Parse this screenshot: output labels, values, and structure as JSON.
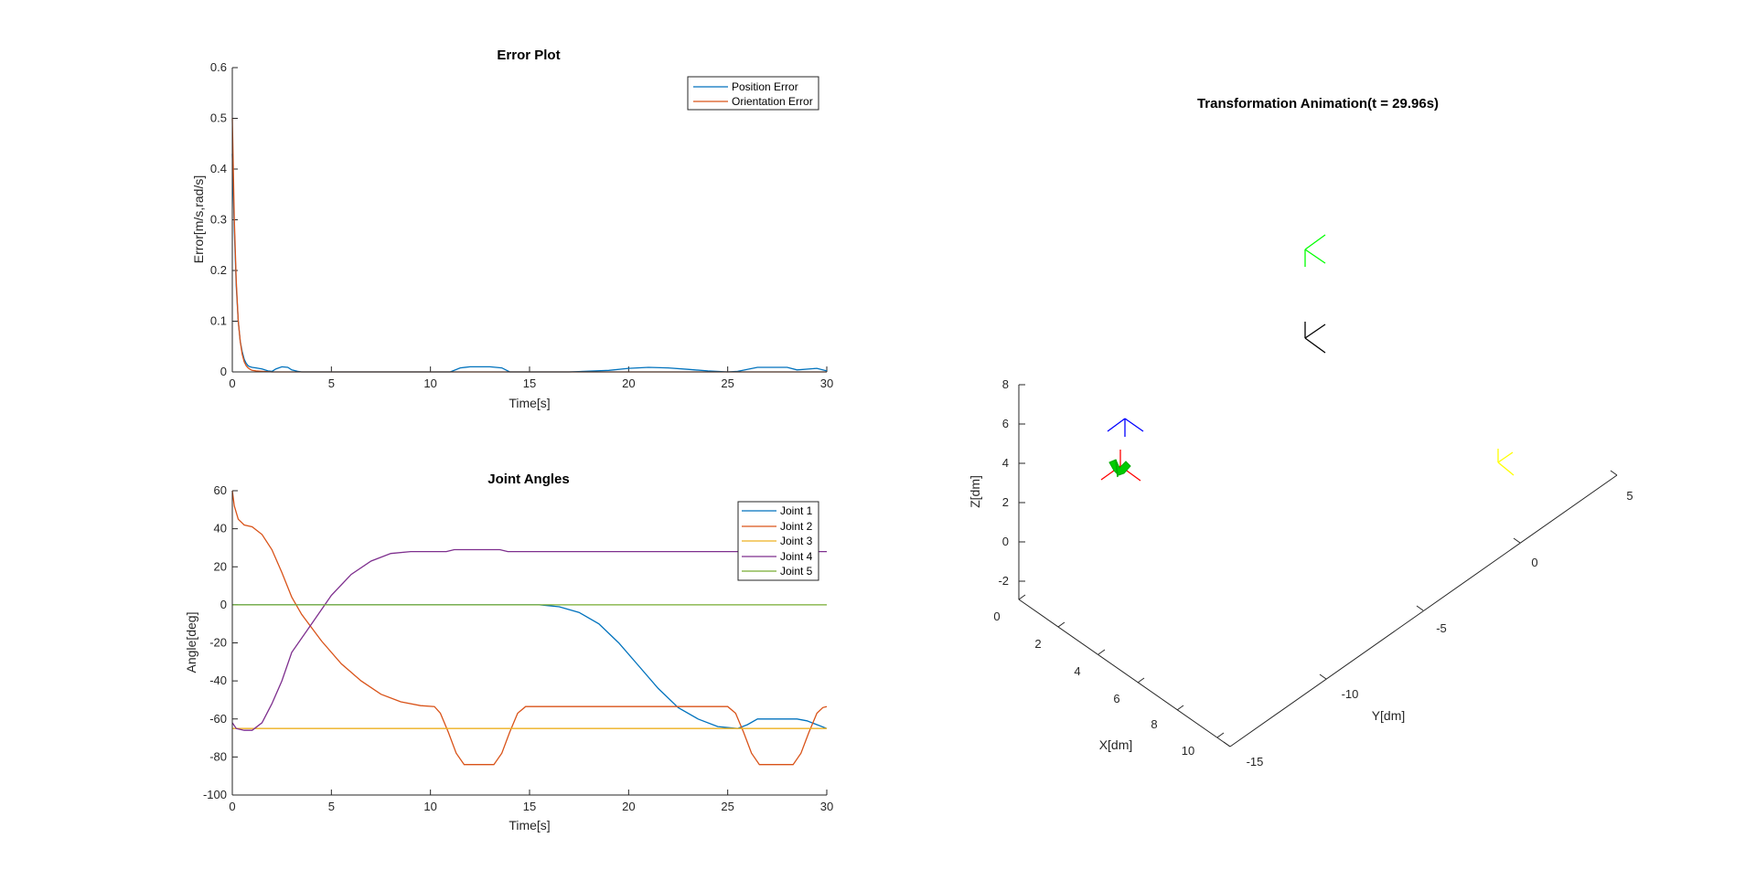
{
  "chart_data": [
    {
      "type": "line",
      "title": "Error Plot",
      "xlabel": "Time[s]",
      "ylabel": "Error[m/s,rad/s]",
      "xlim": [
        0,
        30
      ],
      "ylim": [
        0,
        0.6
      ],
      "xticks": [
        "0",
        "5",
        "10",
        "15",
        "20",
        "25",
        "30"
      ],
      "yticks": [
        "0",
        "0.1",
        "0.2",
        "0.3",
        "0.4",
        "0.5",
        "0.6"
      ],
      "legend": "top-right",
      "series": [
        {
          "name": "Position Error",
          "color": "#0072BD",
          "x": [
            0,
            0.1,
            0.2,
            0.3,
            0.4,
            0.5,
            0.6,
            0.7,
            0.8,
            0.9,
            1.0,
            1.2,
            1.5,
            1.8,
            2.0,
            2.2,
            2.5,
            2.8,
            3.0,
            3.3,
            3.5,
            4.0,
            6.0,
            8.0,
            11.0,
            11.5,
            12.0,
            13.0,
            13.6,
            14.0,
            17.0,
            19.0,
            20.0,
            21.0,
            22.0,
            23.0,
            24.0,
            25.0,
            25.5,
            26.5,
            28.0,
            28.5,
            29.5,
            30
          ],
          "y": [
            0.43,
            0.28,
            0.17,
            0.1,
            0.06,
            0.04,
            0.025,
            0.017,
            0.012,
            0.01,
            0.009,
            0.008,
            0.006,
            0.002,
            0.001,
            0.006,
            0.01,
            0.009,
            0.004,
            0.001,
            0.0,
            0.0,
            0.0,
            0.0,
            0.0,
            0.008,
            0.01,
            0.01,
            0.008,
            0.0,
            0.0,
            0.003,
            0.007,
            0.009,
            0.008,
            0.005,
            0.002,
            0.0,
            0.001,
            0.009,
            0.009,
            0.004,
            0.007,
            0.002
          ]
        },
        {
          "name": "Orientation Error",
          "color": "#D95319",
          "x": [
            0,
            0.1,
            0.2,
            0.3,
            0.4,
            0.5,
            0.6,
            0.7,
            0.8,
            0.9,
            1.0,
            1.2,
            1.5,
            2.0,
            2.5,
            3.0,
            5.0,
            10.0,
            15.0,
            20.0,
            25.0,
            30
          ],
          "y": [
            0.5,
            0.3,
            0.18,
            0.1,
            0.06,
            0.035,
            0.02,
            0.012,
            0.008,
            0.005,
            0.003,
            0.002,
            0.001,
            0.0,
            0.0,
            0.0,
            0.0,
            0.0,
            0.0,
            0.0,
            0.0,
            0.0
          ]
        }
      ]
    },
    {
      "type": "line",
      "title": "Joint Angles",
      "xlabel": "Time[s]",
      "ylabel": "Angle[deg]",
      "xlim": [
        0,
        30
      ],
      "ylim": [
        -100,
        60
      ],
      "xticks": [
        "0",
        "5",
        "10",
        "15",
        "20",
        "25",
        "30"
      ],
      "yticks": [
        "-100",
        "-80",
        "-60",
        "-40",
        "-20",
        "0",
        "20",
        "40",
        "60"
      ],
      "legend": "top-right",
      "series": [
        {
          "name": "Joint 1",
          "color": "#0072BD",
          "x": [
            0,
            15.5,
            16.5,
            17.5,
            18.5,
            19.5,
            20.5,
            21.5,
            22.5,
            23.5,
            24.5,
            25.5,
            26.0,
            26.5,
            28.5,
            29.0,
            29.5,
            30
          ],
          "y": [
            0,
            0,
            -1,
            -4,
            -10,
            -20,
            -32,
            -44,
            -54,
            -60,
            -64,
            -65,
            -63,
            -60,
            -60,
            -61,
            -63,
            -65
          ]
        },
        {
          "name": "Joint 2",
          "color": "#D95319",
          "x": [
            0,
            0.1,
            0.3,
            0.6,
            1.0,
            1.5,
            2.0,
            2.5,
            3.0,
            3.5,
            4.5,
            5.5,
            6.5,
            7.5,
            8.5,
            9.5,
            10.2,
            10.5,
            10.9,
            11.3,
            11.7,
            13.2,
            13.6,
            14.0,
            14.4,
            14.8,
            25.0,
            25.4,
            25.8,
            26.2,
            26.6,
            28.3,
            28.7,
            29.1,
            29.5,
            29.8,
            30
          ],
          "y": [
            60,
            52,
            45,
            42,
            41,
            37,
            29,
            17,
            4,
            -5,
            -19,
            -31,
            -40,
            -47,
            -51,
            -53,
            -53.5,
            -57,
            -67,
            -78,
            -84,
            -84,
            -78,
            -67,
            -57,
            -53.5,
            -53.5,
            -57,
            -67,
            -78,
            -84,
            -84,
            -78,
            -67,
            -57,
            -54,
            -53.5
          ]
        },
        {
          "name": "Joint 3",
          "color": "#EDB120",
          "x": [
            0,
            30
          ],
          "y": [
            -65,
            -65
          ]
        },
        {
          "name": "Joint 4",
          "color": "#7E2F8E",
          "x": [
            0,
            0.2,
            0.6,
            1.0,
            1.5,
            2.0,
            2.5,
            3.0,
            4.0,
            5.0,
            6.0,
            7.0,
            8.0,
            9.0,
            10.0,
            10.8,
            11.2,
            13.5,
            13.9,
            14.3,
            30
          ],
          "y": [
            -62,
            -65,
            -66,
            -66,
            -62,
            -52,
            -40,
            -25,
            -10,
            5,
            16,
            23,
            27,
            28,
            28,
            28,
            29,
            29,
            28,
            28,
            28
          ]
        },
        {
          "name": "Joint 5",
          "color": "#77AC30",
          "x": [
            0,
            30
          ],
          "y": [
            0,
            0
          ]
        }
      ]
    },
    {
      "type": "scatter",
      "subtype": "3d-frames",
      "title": "Transformation Animation(t = 29.96s)",
      "xlabel": "X[dm]",
      "ylabel": "Y[dm]",
      "zlabel": "Z[dm]",
      "xticks": [
        "0",
        "2",
        "4",
        "6",
        "8",
        "10"
      ],
      "yticks": [
        "-15",
        "-10",
        "-5",
        "0",
        "5"
      ],
      "zticks": [
        "-2",
        "0",
        "2",
        "4",
        "6",
        "8"
      ],
      "frames": [
        {
          "color": "#00ff00"
        },
        {
          "color": "#000000"
        },
        {
          "color": "#0000ff"
        },
        {
          "color": "#ff0000"
        },
        {
          "color": "#ffff00"
        }
      ]
    }
  ]
}
